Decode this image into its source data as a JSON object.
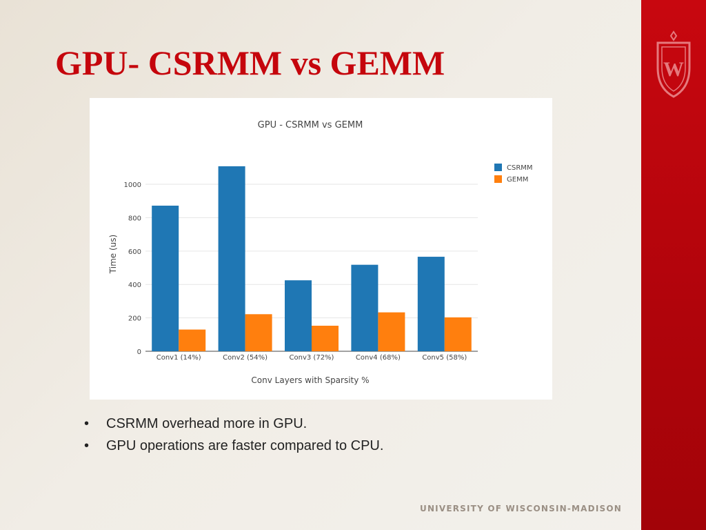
{
  "slide": {
    "title": "GPU- CSRMM vs GEMM",
    "bullets": [
      "CSRMM overhead more in GPU.",
      "GPU operations are faster compared to CPU."
    ],
    "footer": "UNIVERSITY OF WISCONSIN-MADISON",
    "colors": {
      "title": "#c5050c",
      "sidebar": "#c5050c"
    }
  },
  "crest": {
    "icon": "uw-crest-icon",
    "letter": "W"
  },
  "chart_data": {
    "type": "bar",
    "title": "GPU - CSRMM vs GEMM",
    "xlabel": "Conv Layers with Sparsity %",
    "ylabel": "Time (us)",
    "categories": [
      "Conv1 (14%)",
      "Conv2 (54%)",
      "Conv3 (72%)",
      "Conv4 (68%)",
      "Conv5 (58%)"
    ],
    "series": [
      {
        "name": "CSRMM",
        "color": "#1f77b4",
        "values": [
          872,
          1108,
          425,
          518,
          566
        ]
      },
      {
        "name": "GEMM",
        "color": "#ff7f0e",
        "values": [
          130,
          222,
          153,
          233,
          203
        ]
      }
    ],
    "yticks": [
      0,
      200,
      400,
      600,
      800,
      1000
    ],
    "ylim": [
      0,
      1120
    ],
    "grid": true,
    "legend": "top-right"
  }
}
